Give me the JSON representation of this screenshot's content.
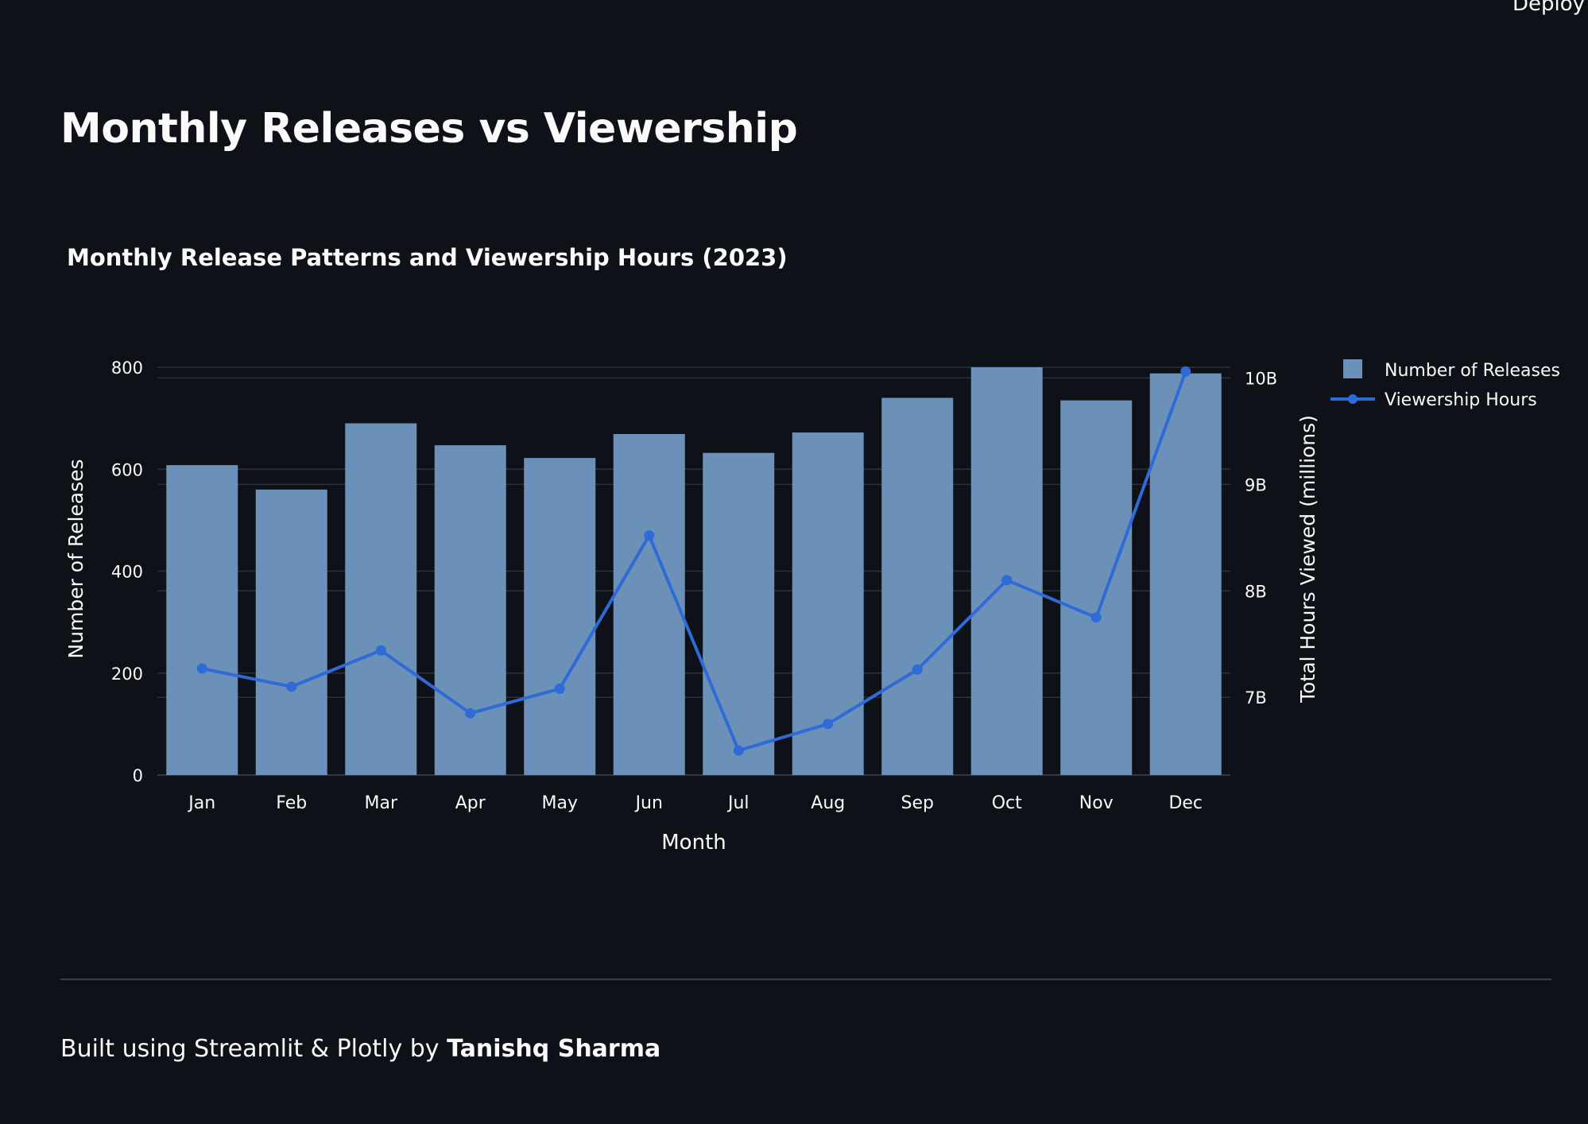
{
  "header": {
    "deploy_label": "Deploy"
  },
  "page": {
    "title": "Monthly Releases vs Viewership"
  },
  "footer": {
    "prefix": "Built using Streamlit & Plotly by ",
    "author": "Tanishq Sharma"
  },
  "chart_data": {
    "type": "bar",
    "title": "Monthly Release Patterns and Viewership Hours (2023)",
    "xlabel": "Month",
    "ylabel": "Number of Releases",
    "y2label": "Total Hours Viewed (millions)",
    "categories": [
      "Jan",
      "Feb",
      "Mar",
      "Apr",
      "May",
      "Jun",
      "Jul",
      "Aug",
      "Sep",
      "Oct",
      "Nov",
      "Dec"
    ],
    "ylim": [
      0,
      800
    ],
    "yticks": [
      0,
      200,
      400,
      600,
      800
    ],
    "y2lim": [
      6.27,
      10.1
    ],
    "y2ticks": [
      7,
      8,
      9,
      10
    ],
    "y2ticklabels": [
      "7B",
      "8B",
      "9B",
      "10B"
    ],
    "legend_position": "top-right",
    "grid": true,
    "colors": {
      "bar": "#6b91b8",
      "line": "#2e6bd6",
      "grid": "#2c313a",
      "axis": "#3f444d"
    },
    "series": [
      {
        "name": "Number of Releases",
        "type": "bar",
        "axis": "left",
        "values": [
          608,
          560,
          690,
          647,
          622,
          669,
          632,
          672,
          740,
          800,
          735,
          788
        ]
      },
      {
        "name": "Viewership Hours",
        "type": "line",
        "axis": "right",
        "values": [
          7.27,
          7.1,
          7.44,
          6.85,
          7.08,
          8.52,
          6.5,
          6.75,
          7.26,
          8.1,
          7.75,
          10.06
        ]
      }
    ]
  }
}
